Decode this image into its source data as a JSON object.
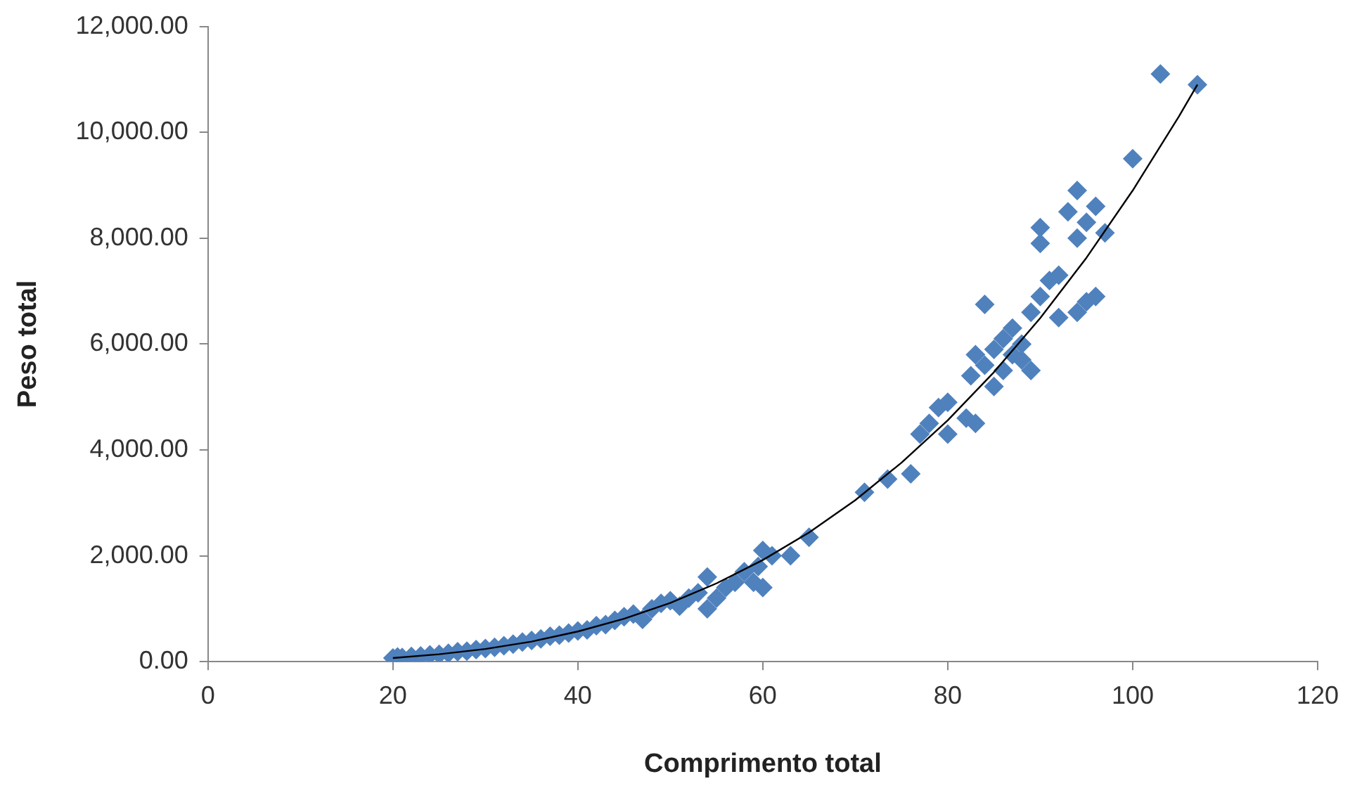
{
  "chart_data": {
    "type": "scatter",
    "xlabel": "Comprimento total",
    "ylabel": "Peso total",
    "marker": "diamond",
    "grid": false,
    "legend": false,
    "xlim": [
      0,
      120
    ],
    "xticks": [
      0,
      20,
      40,
      60,
      80,
      100,
      120
    ],
    "ylim": [
      0,
      12000
    ],
    "yticks": [
      {
        "value": 0,
        "label": "0.00"
      },
      {
        "value": 2000,
        "label": "2,000.00"
      },
      {
        "value": 4000,
        "label": "4,000.00"
      },
      {
        "value": 6000,
        "label": "6,000.00"
      },
      {
        "value": 8000,
        "label": "8,000.00"
      },
      {
        "value": 10000,
        "label": "10,000.00"
      },
      {
        "value": 12000,
        "label": "12,000.00"
      }
    ],
    "series": [
      {
        "color": "#4f81bd",
        "x": [
          20,
          20.5,
          21,
          22,
          23,
          24,
          25,
          26,
          27,
          28,
          29,
          30,
          31,
          32,
          33,
          34,
          35,
          36,
          37,
          38,
          39,
          40,
          41,
          42,
          43,
          44,
          45,
          46,
          47,
          48,
          49,
          50,
          51,
          52,
          53,
          54,
          54,
          55,
          56,
          57,
          58,
          59,
          59.5,
          60,
          60,
          61,
          63,
          65,
          71,
          73.5,
          76,
          77,
          78,
          79,
          80,
          80,
          82,
          82.5,
          83,
          83,
          84,
          84,
          85,
          85,
          86,
          86,
          87,
          87,
          88,
          88,
          89,
          89,
          90,
          90,
          90,
          91,
          92,
          92,
          93,
          94,
          94,
          94,
          95,
          95,
          96,
          96,
          97,
          100,
          103,
          107
        ],
        "values": [
          70,
          90,
          80,
          100,
          110,
          130,
          140,
          160,
          190,
          200,
          230,
          250,
          270,
          300,
          330,
          370,
          400,
          430,
          480,
          500,
          540,
          580,
          600,
          680,
          700,
          780,
          850,
          900,
          800,
          1000,
          1100,
          1150,
          1050,
          1200,
          1300,
          1600,
          1000,
          1200,
          1400,
          1500,
          1700,
          1500,
          1800,
          2100,
          1400,
          2000,
          2000,
          2350,
          3200,
          3450,
          3550,
          4300,
          4500,
          4800,
          4300,
          4900,
          4600,
          5400,
          5800,
          4500,
          6750,
          5600,
          5900,
          5200,
          6100,
          5500,
          6300,
          5800,
          5700,
          6000,
          6600,
          5500,
          7900,
          8200,
          6900,
          7200,
          6500,
          7300,
          8500,
          8900,
          8000,
          6600,
          8300,
          6800,
          8600,
          6900,
          8100,
          9500,
          11100,
          10900
        ]
      },
      {
        "type": "line",
        "color": "#000000",
        "marker": "none",
        "x": [
          20,
          25,
          30,
          35,
          40,
          45,
          50,
          55,
          60,
          65,
          70,
          75,
          80,
          85,
          90,
          95,
          100,
          105,
          107
        ],
        "values": [
          70,
          140,
          240,
          380,
          570,
          810,
          1110,
          1480,
          1920,
          2440,
          3050,
          3760,
          4560,
          5470,
          6490,
          7630,
          8900,
          10300,
          10900
        ]
      }
    ]
  }
}
